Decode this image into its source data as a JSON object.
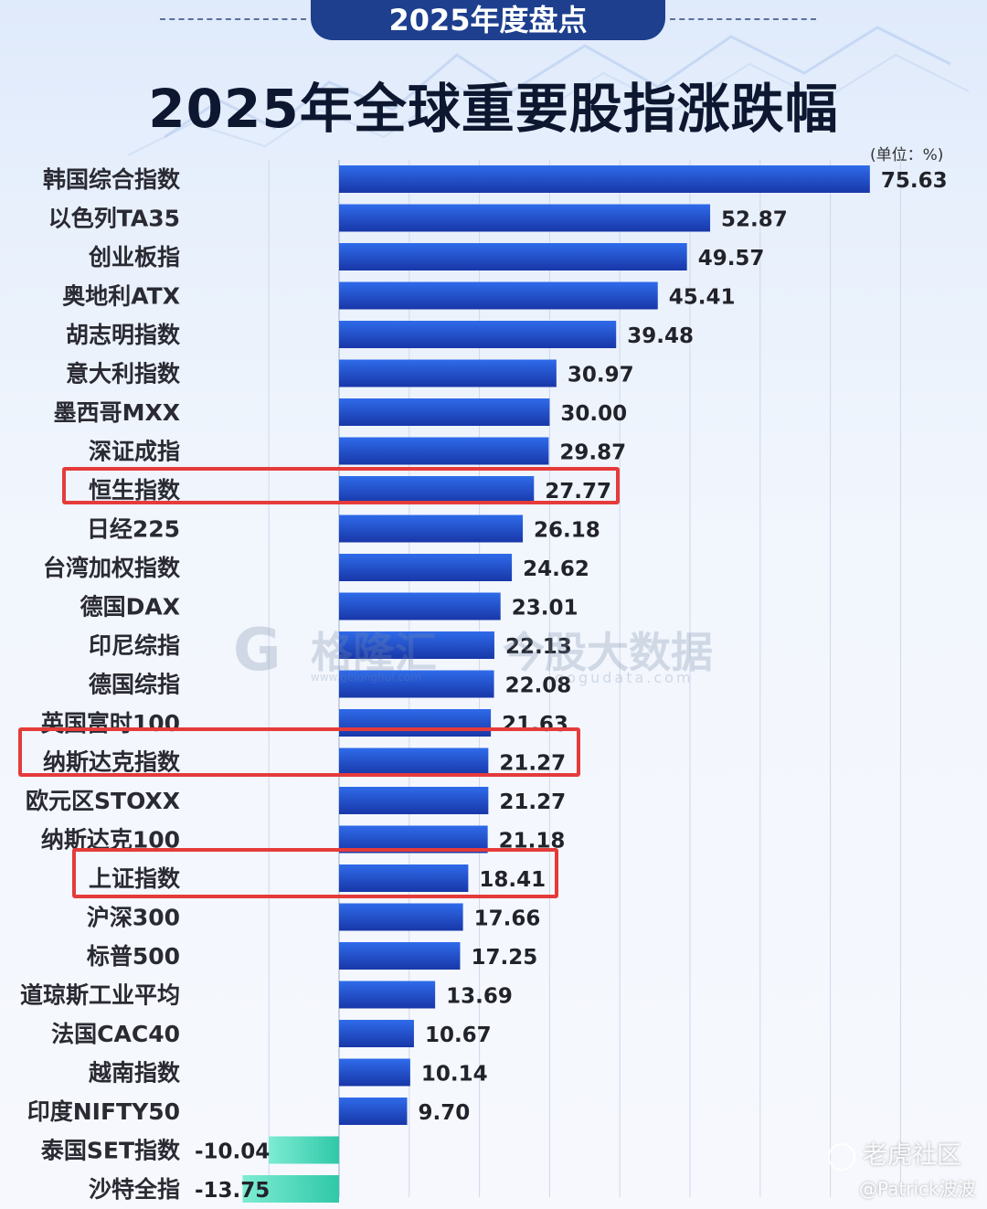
{
  "header": {
    "badge": "2025年度盘点",
    "title": "2025年全球重要股指涨跌幅",
    "unit": "(单位：%)"
  },
  "watermarks": {
    "brand_icon": "G",
    "brand_name": "格隆汇",
    "brand_url": "www.gelonghui.com",
    "data_name": "今股大数据",
    "data_url": "gogudata.com",
    "site": "老虎社区",
    "user": "@Patrick波波"
  },
  "colors": {
    "positive_bar": "#1f4bc4",
    "negative_bar": "#3fd6b6",
    "highlight": "#e53b3b"
  },
  "chart_data": {
    "type": "bar",
    "orientation": "horizontal",
    "title": "2025年全球重要股指涨跌幅",
    "unit": "(单位：%)",
    "categories": [
      "韩国综合指数",
      "以色列TA35",
      "创业板指",
      "奥地利ATX",
      "胡志明指数",
      "意大利指数",
      "墨西哥MXX",
      "深证成指",
      "恒生指数",
      "日经225",
      "台湾加权指数",
      "德国DAX",
      "印尼综指",
      "德国综指",
      "英国富时100",
      "纳斯达克指数",
      "欧元区STOXX",
      "纳斯达克100",
      "上证指数",
      "沪深300",
      "标普500",
      "道琼斯工业平均",
      "法国CAC40",
      "越南指数",
      "印度NIFTY50",
      "泰国SET指数",
      "沙特全指"
    ],
    "values": [
      75.63,
      52.87,
      49.57,
      45.41,
      39.48,
      30.97,
      30.0,
      29.87,
      27.77,
      26.18,
      24.62,
      23.01,
      22.13,
      22.08,
      21.63,
      21.27,
      21.27,
      21.18,
      18.41,
      17.66,
      17.25,
      13.69,
      10.67,
      10.14,
      9.7,
      -10.04,
      -13.75
    ],
    "value_labels": [
      "75.63",
      "52.87",
      "49.57",
      "45.41",
      "39.48",
      "30.97",
      "30.00",
      "29.87",
      "27.77",
      "26.18",
      "24.62",
      "23.01",
      "22.13",
      "22.08",
      "21.63",
      "21.27",
      "21.27",
      "21.18",
      "18.41",
      "17.66",
      "17.25",
      "13.69",
      "10.67",
      "10.14",
      "9.70",
      "-10.04",
      "-13.75"
    ],
    "highlighted": [
      "恒生指数",
      "纳斯达克指数",
      "上证指数"
    ],
    "xlim": [
      -20,
      85
    ],
    "grid": "vertical"
  }
}
